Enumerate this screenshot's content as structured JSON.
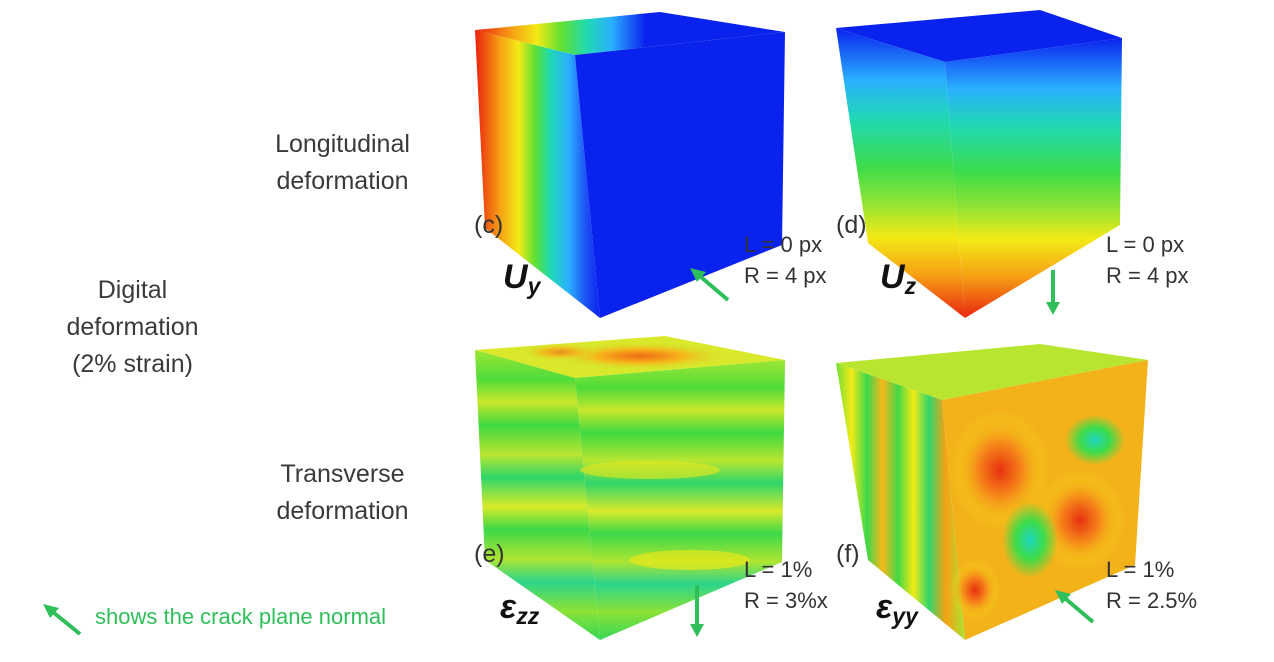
{
  "rows": {
    "longitudinal": "Longitudinal\ndeformation",
    "transverse": "Transverse\ndeformation"
  },
  "group_label": "Digital\ndeformation\n(2% strain)",
  "panels": [
    {
      "tag": "(c)",
      "symbol": "U",
      "sub": "y",
      "L": "L = 0 px",
      "R": "R = 4 px"
    },
    {
      "tag": "(d)",
      "symbol": "U",
      "sub": "z",
      "L": "L = 0 px",
      "R": "R = 4 px"
    },
    {
      "tag": "(e)",
      "symbol": "ε",
      "sub": "zz",
      "L": "L = 1%",
      "R": "R = 3%x"
    },
    {
      "tag": "(f)",
      "symbol": "ε",
      "sub": "yy",
      "L": "L = 1%",
      "R": "R = 2.5%"
    }
  ],
  "legend": {
    "text": "shows the crack plane normal"
  },
  "colors": {
    "arrow": "#2fbf5a",
    "blue": "#0a22ee",
    "red": "#e82510"
  }
}
